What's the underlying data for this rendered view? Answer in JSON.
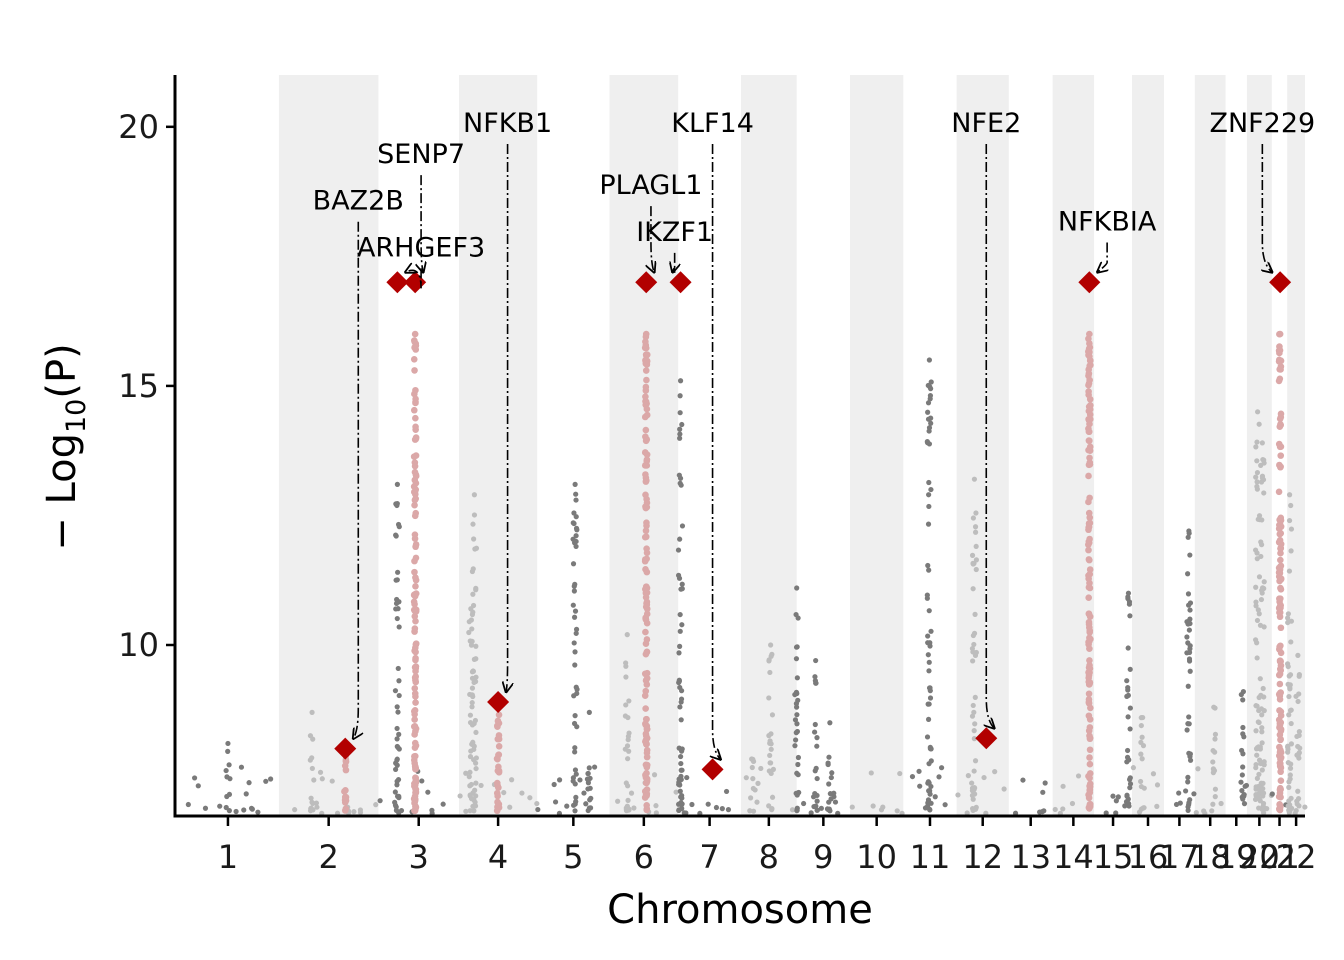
{
  "chart_data": {
    "type": "scatter",
    "title": "",
    "xlabel": "Chromosome",
    "ylabel_main": "− Log",
    "ylabel_sub": "10",
    "ylabel_tail": "(P)",
    "ylim": [
      6.7,
      21
    ],
    "yticks": [
      10,
      15,
      20
    ],
    "grid": false,
    "chromosomes": [
      {
        "label": "1",
        "start": 0.0,
        "end": 8.6
      },
      {
        "label": "2",
        "start": 8.6,
        "end": 17.0
      },
      {
        "label": "3",
        "start": 17.0,
        "end": 23.8
      },
      {
        "label": "4",
        "start": 23.8,
        "end": 30.4
      },
      {
        "label": "5",
        "start": 30.4,
        "end": 36.5
      },
      {
        "label": "6",
        "start": 36.5,
        "end": 42.3
      },
      {
        "label": "7",
        "start": 42.3,
        "end": 47.6
      },
      {
        "label": "8",
        "start": 47.6,
        "end": 52.3
      },
      {
        "label": "9",
        "start": 52.3,
        "end": 56.8
      },
      {
        "label": "10",
        "start": 56.8,
        "end": 61.3
      },
      {
        "label": "11",
        "start": 61.3,
        "end": 65.8
      },
      {
        "label": "12",
        "start": 65.8,
        "end": 70.2
      },
      {
        "label": "13",
        "start": 70.2,
        "end": 73.9
      },
      {
        "label": "14",
        "start": 73.9,
        "end": 77.4
      },
      {
        "label": "15",
        "start": 77.4,
        "end": 80.6
      },
      {
        "label": "16",
        "start": 80.6,
        "end": 83.3
      },
      {
        "label": "17",
        "start": 83.3,
        "end": 85.9
      },
      {
        "label": "18",
        "start": 85.9,
        "end": 88.5
      },
      {
        "label": "19",
        "start": 88.5,
        "end": 90.3
      },
      {
        "label": "20",
        "start": 90.3,
        "end": 92.4
      },
      {
        "label": "21",
        "start": 92.4,
        "end": 93.7
      },
      {
        "label": "22",
        "start": 93.7,
        "end": 95.2
      }
    ],
    "colors": {
      "odd_points": "#7a7a7a",
      "even_points": "#bdbdbd",
      "highlight_points": "#dba8a8",
      "lead_marker": "#b20000",
      "band": "#efefef"
    },
    "highlight_regions": [
      {
        "pos": 14.2,
        "top": 7.9
      },
      {
        "pos": 20.1,
        "top": 16.0
      },
      {
        "pos": 27.1,
        "top": 8.9
      },
      {
        "pos": 39.6,
        "top": 16.0
      },
      {
        "pos": 77.0,
        "top": 16.0
      },
      {
        "pos": 93.1,
        "top": 16.0
      }
    ],
    "peaks": [
      {
        "pos": 4.3,
        "top": 8.1,
        "group": "gray"
      },
      {
        "pos": 11.4,
        "top": 8.7,
        "group": "gray"
      },
      {
        "pos": 18.6,
        "top": 13.1,
        "group": "dark"
      },
      {
        "pos": 25.1,
        "top": 12.9,
        "group": "gray"
      },
      {
        "pos": 24.8,
        "top": 10.7,
        "group": "gray"
      },
      {
        "pos": 33.6,
        "top": 13.1,
        "group": "dark"
      },
      {
        "pos": 34.8,
        "top": 8.7,
        "group": "dark"
      },
      {
        "pos": 38.0,
        "top": 10.2,
        "group": "gray"
      },
      {
        "pos": 42.5,
        "top": 15.1,
        "group": "dark"
      },
      {
        "pos": 48.5,
        "top": 7.8,
        "group": "gray"
      },
      {
        "pos": 50.1,
        "top": 10.0,
        "group": "gray"
      },
      {
        "pos": 52.3,
        "top": 11.1,
        "group": "dark"
      },
      {
        "pos": 53.9,
        "top": 9.7,
        "group": "dark"
      },
      {
        "pos": 55.1,
        "top": 8.5,
        "group": "dark"
      },
      {
        "pos": 63.5,
        "top": 15.5,
        "group": "dark"
      },
      {
        "pos": 67.3,
        "top": 13.2,
        "group": "gray"
      },
      {
        "pos": 80.3,
        "top": 11.0,
        "group": "gray"
      },
      {
        "pos": 81.5,
        "top": 8.6,
        "group": "gray"
      },
      {
        "pos": 85.4,
        "top": 12.2,
        "group": "dark"
      },
      {
        "pos": 87.5,
        "top": 8.8,
        "group": "gray"
      },
      {
        "pos": 90.0,
        "top": 9.1,
        "group": "dark"
      },
      {
        "pos": 91.2,
        "top": 14.5,
        "group": "gray"
      },
      {
        "pos": 91.6,
        "top": 13.9,
        "group": "dark"
      },
      {
        "pos": 93.9,
        "top": 12.9,
        "group": "dark"
      },
      {
        "pos": 94.6,
        "top": 9.8,
        "group": "gray"
      }
    ],
    "lead_snps": [
      {
        "gene": "BAZ2B",
        "pos": 14.2,
        "y": 8.0
      },
      {
        "gene": "ARHGEF3",
        "pos": 18.6,
        "y": 17.0
      },
      {
        "gene": "SENP7",
        "pos": 20.1,
        "y": 17.0
      },
      {
        "gene": "NFKB1",
        "pos": 27.1,
        "y": 8.9
      },
      {
        "gene": "PLAGL1",
        "pos": 39.6,
        "y": 17.0
      },
      {
        "gene": "IKZF1",
        "pos": 42.5,
        "y": 17.0
      },
      {
        "gene": "KLF14",
        "pos": 45.2,
        "y": 7.6
      },
      {
        "gene": "NFE2",
        "pos": 68.3,
        "y": 8.2
      },
      {
        "gene": "NFKBIA",
        "pos": 77.0,
        "y": 17.0
      },
      {
        "gene": "ZNF229",
        "pos": 93.1,
        "y": 17.0
      }
    ],
    "annotations": [
      {
        "gene": "BAZ2B",
        "label_pos": 15.3,
        "label_y": 18.4
      },
      {
        "gene": "ARHGEF3",
        "label_pos": 20.6,
        "label_y": 17.5
      },
      {
        "gene": "SENP7",
        "label_pos": 20.6,
        "label_y": 19.3
      },
      {
        "gene": "NFKB1",
        "label_pos": 27.9,
        "label_y": 19.9
      },
      {
        "gene": "PLAGL1",
        "label_pos": 40.0,
        "label_y": 18.7
      },
      {
        "gene": "IKZF1",
        "label_pos": 42.0,
        "label_y": 17.8
      },
      {
        "gene": "KLF14",
        "label_pos": 45.2,
        "label_y": 19.9
      },
      {
        "gene": "NFE2",
        "label_pos": 68.3,
        "label_y": 19.9
      },
      {
        "gene": "NFKBIA",
        "label_pos": 78.5,
        "label_y": 18.0
      },
      {
        "gene": "ZNF229",
        "label_pos": 91.6,
        "label_y": 19.9
      }
    ]
  }
}
